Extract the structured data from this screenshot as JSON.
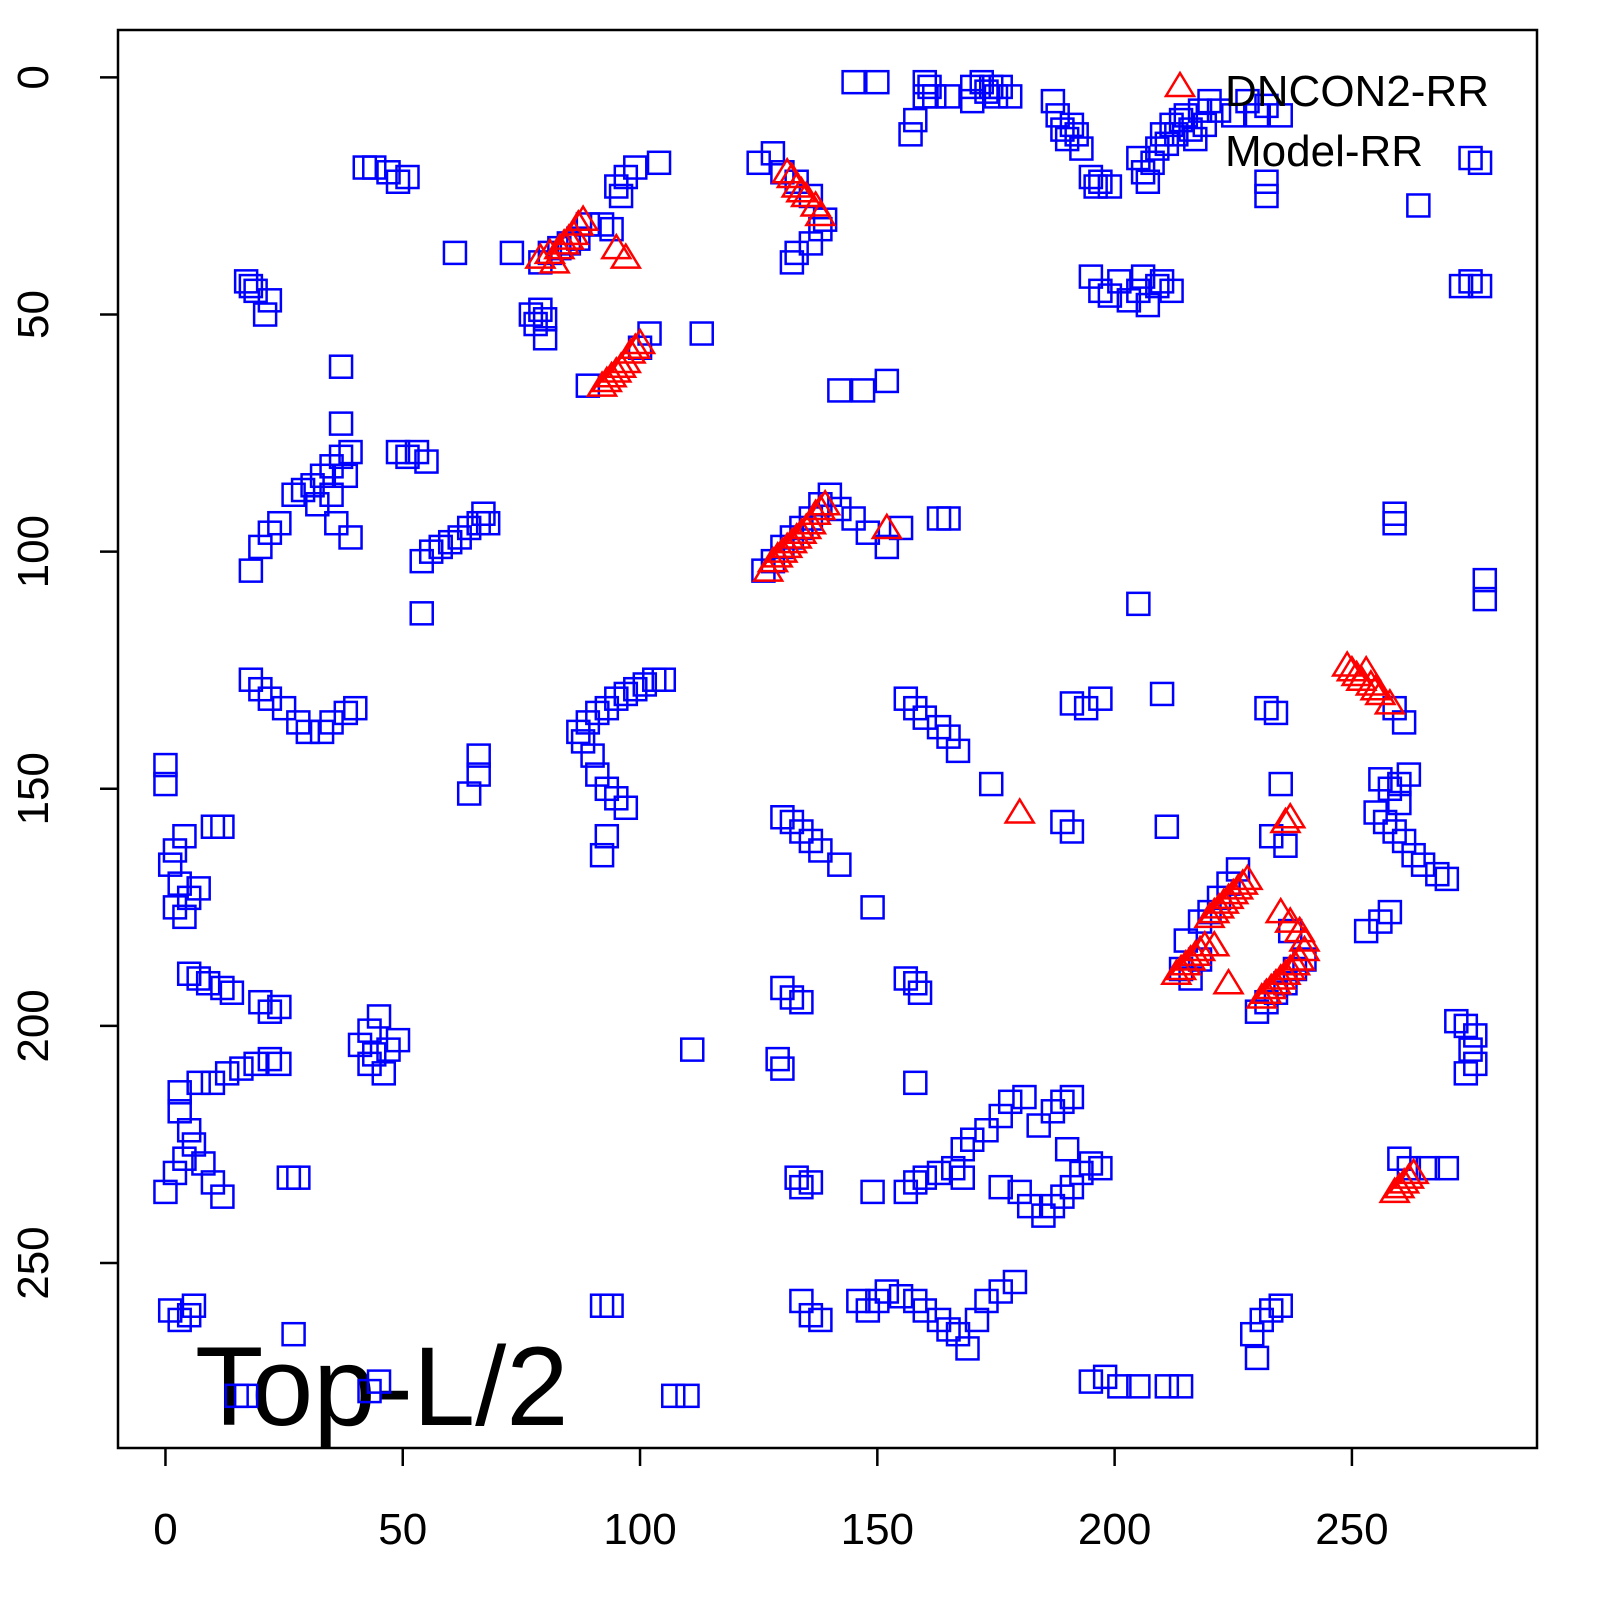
{
  "chart_data": {
    "type": "scatter",
    "annotation": "Top-L/2",
    "legend": "top-right",
    "xlim": [
      -10,
      289
    ],
    "ylim": [
      289,
      -10
    ],
    "y_inverted": true,
    "xticks": [
      0,
      50,
      100,
      150,
      200,
      250
    ],
    "yticks": [
      0,
      50,
      100,
      150,
      200,
      250
    ],
    "series": [
      {
        "name": "DNCON2-RR",
        "color": "#ff0000",
        "marker": "triangle",
        "x": [
          79,
          81,
          83,
          84,
          85,
          86,
          87,
          88,
          82,
          95,
          97,
          131,
          132,
          133,
          134,
          135,
          137,
          138,
          92,
          93,
          94,
          95,
          96,
          97,
          98,
          99,
          100,
          127,
          128,
          129,
          130,
          131,
          132,
          133,
          134,
          135,
          136,
          137,
          138,
          139,
          152,
          249,
          250,
          251,
          252,
          253,
          254,
          255,
          256,
          258,
          180,
          237,
          236,
          213,
          214,
          215,
          216,
          217,
          218,
          219,
          221,
          220,
          221,
          222,
          223,
          224,
          225,
          226,
          227,
          228,
          224,
          231,
          232,
          233,
          234,
          235,
          236,
          237,
          238,
          239,
          240,
          235,
          237,
          239,
          240,
          259,
          260,
          261,
          262,
          263
        ],
        "values": [
          38,
          37,
          36,
          35,
          34,
          33,
          31,
          30,
          39,
          36,
          38,
          20,
          21,
          23,
          24,
          25,
          27,
          29,
          65,
          64,
          63,
          62,
          61,
          60,
          58,
          57,
          56,
          104,
          102,
          101,
          100,
          99,
          98,
          97,
          96,
          95,
          94,
          92,
          91,
          90,
          95,
          124,
          125,
          126,
          127,
          125,
          128,
          129,
          130,
          132,
          155,
          156,
          157,
          189,
          188,
          187,
          186,
          185,
          184,
          183,
          183,
          177,
          176,
          175,
          174,
          173,
          172,
          171,
          170,
          169,
          191,
          194,
          193,
          192,
          191,
          190,
          189,
          188,
          187,
          186,
          184,
          176,
          178,
          180,
          182,
          235,
          234,
          233,
          232,
          231
        ]
      },
      {
        "name": "Model-RR",
        "color": "#0000ff",
        "marker": "square",
        "x": [
          145,
          150,
          157,
          158,
          160,
          160,
          161,
          162,
          165,
          170,
          170,
          172,
          173,
          174,
          175,
          176,
          178,
          187,
          188,
          189,
          190,
          191,
          192,
          193,
          195,
          196,
          197,
          199,
          205,
          206,
          207,
          208,
          209,
          210,
          211,
          212,
          213,
          214,
          215,
          216,
          217,
          218,
          219,
          220,
          222,
          225,
          228,
          230,
          232,
          235,
          232,
          232,
          264,
          275,
          277,
          195,
          197,
          199,
          201,
          203,
          205,
          206,
          207,
          209,
          210,
          212,
          273,
          275,
          277,
          42,
          44,
          47,
          49,
          51,
          61,
          73,
          79,
          81,
          83,
          85,
          87,
          89,
          92,
          94,
          95,
          97,
          99,
          104,
          96,
          77,
          78,
          79,
          80,
          80,
          100,
          102,
          113,
          89,
          125,
          128,
          130,
          133,
          136,
          139,
          138,
          136,
          133,
          132,
          142,
          147,
          152,
          17,
          18,
          19,
          22,
          21,
          37,
          37,
          27,
          29,
          31,
          33,
          35,
          37,
          39,
          38,
          35,
          32,
          36,
          39,
          49,
          51,
          53,
          55,
          24,
          22,
          20,
          18,
          54,
          56,
          58,
          60,
          62,
          64,
          66,
          67,
          68,
          54,
          126,
          128,
          130,
          132,
          134,
          136,
          138,
          140,
          142,
          145,
          148,
          152,
          155,
          163,
          165,
          259,
          259,
          278,
          278,
          205,
          18,
          20,
          22,
          25,
          28,
          30,
          33,
          35,
          38,
          40,
          87,
          89,
          91,
          93,
          95,
          97,
          99,
          101,
          103,
          105,
          88,
          90,
          91,
          93,
          95,
          97,
          93,
          92,
          156,
          158,
          160,
          163,
          165,
          167,
          174,
          191,
          194,
          197,
          210,
          232,
          234,
          259,
          261,
          0,
          0,
          66,
          66,
          64,
          256,
          258,
          260,
          255,
          257,
          259,
          261,
          263,
          265,
          268,
          270,
          260,
          262,
          4,
          2,
          1,
          3,
          5,
          7,
          2,
          4,
          10,
          12,
          130,
          132,
          134,
          136,
          138,
          142,
          149,
          189,
          191,
          211,
          235,
          233,
          236,
          256,
          253,
          258,
          226,
          224,
          222,
          220,
          218,
          215,
          214,
          216,
          218,
          232,
          230,
          234,
          236,
          238,
          240,
          237,
          5,
          7,
          9,
          12,
          14,
          20,
          22,
          24,
          45,
          43,
          41,
          44,
          47,
          49,
          46,
          43,
          0,
          2,
          4,
          6,
          8,
          10,
          12,
          5,
          3,
          3,
          7,
          10,
          13,
          16,
          19,
          22,
          24,
          26,
          28,
          111,
          130,
          132,
          134,
          129,
          130,
          156,
          158,
          159,
          158,
          133,
          134,
          136,
          149,
          156,
          158,
          160,
          163,
          166,
          168,
          170,
          173,
          176,
          178,
          181,
          184,
          187,
          189,
          191,
          180,
          182,
          185,
          187,
          189,
          191,
          193,
          195,
          197,
          190,
          168,
          176,
          260,
          262,
          266,
          270,
          272,
          274,
          276,
          275,
          274,
          276,
          1,
          3,
          5,
          6,
          27,
          92,
          94,
          134,
          136,
          138,
          146,
          148,
          150,
          152,
          155,
          158,
          160,
          163,
          165,
          167,
          169,
          171,
          173,
          176,
          179,
          229,
          231,
          233,
          235,
          230,
          45,
          43,
          15,
          17,
          107,
          110,
          195,
          198,
          201,
          205,
          211,
          214
        ],
        "values": [
          1,
          1,
          12,
          9,
          1,
          4,
          2,
          4,
          4,
          2,
          5,
          1,
          3,
          2,
          4,
          2,
          4,
          5,
          8,
          11,
          13,
          10,
          12,
          15,
          21,
          23,
          22,
          23,
          17,
          20,
          22,
          18,
          15,
          12,
          14,
          10,
          12,
          9,
          8,
          11,
          13,
          7,
          10,
          5,
          7,
          8,
          5,
          8,
          6,
          8,
          22,
          25,
          27,
          17,
          18,
          42,
          45,
          46,
          43,
          47,
          45,
          42,
          48,
          44,
          43,
          45,
          44,
          43,
          44,
          19,
          19,
          20,
          22,
          21,
          37,
          37,
          39,
          37,
          36,
          35,
          34,
          31,
          31,
          32,
          23,
          21,
          19,
          18,
          25,
          50,
          52,
          49,
          55,
          51,
          57,
          54,
          54,
          65,
          18,
          16,
          20,
          22,
          25,
          30,
          32,
          35,
          37,
          39,
          66,
          66,
          64,
          43,
          44,
          45,
          47,
          50,
          61,
          73,
          88,
          87,
          86,
          84,
          82,
          80,
          79,
          84,
          88,
          90,
          94,
          97,
          79,
          80,
          79,
          81,
          94,
          96,
          99,
          104,
          102,
          100,
          99,
          98,
          97,
          95,
          94,
          92,
          94,
          113,
          104,
          102,
          99,
          97,
          95,
          93,
          90,
          88,
          91,
          93,
          96,
          99,
          95,
          93,
          93,
          92,
          94,
          106,
          110,
          111,
          127,
          129,
          131,
          133,
          136,
          138,
          138,
          136,
          134,
          133,
          138,
          136,
          134,
          133,
          131,
          130,
          129,
          128,
          127,
          127,
          140,
          143,
          147,
          150,
          152,
          154,
          160,
          164,
          131,
          133,
          135,
          137,
          139,
          142,
          149,
          132,
          133,
          131,
          130,
          133,
          134,
          133,
          136,
          145,
          149,
          143,
          147,
          151,
          148,
          150,
          153,
          155,
          157,
          159,
          161,
          164,
          166,
          168,
          169,
          149,
          147,
          160,
          163,
          166,
          170,
          173,
          171,
          175,
          177,
          158,
          158,
          156,
          157,
          159,
          161,
          163,
          166,
          175,
          157,
          159,
          158,
          149,
          160,
          162,
          178,
          180,
          176,
          167,
          170,
          173,
          176,
          178,
          182,
          188,
          190,
          186,
          195,
          197,
          193,
          191,
          188,
          186,
          180,
          189,
          190,
          191,
          192,
          193,
          195,
          197,
          196,
          198,
          201,
          204,
          206,
          205,
          203,
          210,
          208,
          235,
          231,
          228,
          225,
          229,
          233,
          236,
          222,
          218,
          214,
          212,
          212,
          210,
          209,
          208,
          207,
          208,
          232,
          232,
          205,
          192,
          194,
          195,
          207,
          209,
          190,
          191,
          193,
          212,
          232,
          234,
          233,
          235,
          235,
          233,
          232,
          231,
          230,
          226,
          224,
          222,
          219,
          216,
          215,
          221,
          218,
          216,
          215,
          235,
          238,
          240,
          238,
          236,
          234,
          231,
          229,
          230,
          226,
          232,
          234,
          228,
          230,
          230,
          230,
          199,
          200,
          202,
          205,
          210,
          208,
          260,
          262,
          261,
          259,
          265,
          259,
          259,
          258,
          261,
          262,
          258,
          260,
          258,
          256,
          257,
          258,
          260,
          262,
          264,
          265,
          268,
          262,
          258,
          256,
          254,
          265,
          262,
          260,
          259,
          270,
          275,
          277,
          278,
          278,
          278,
          278,
          275,
          274,
          276,
          276,
          276,
          276
        ]
      }
    ]
  }
}
